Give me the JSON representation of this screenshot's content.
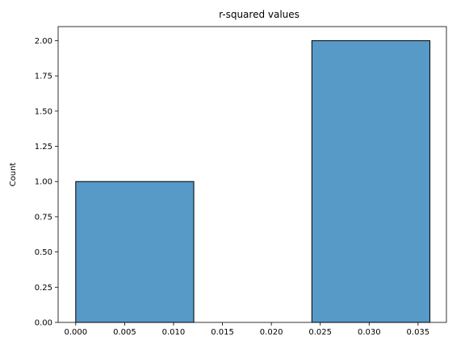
{
  "chart_data": {
    "type": "bar",
    "title": "r-squared values",
    "xlabel": "",
    "ylabel": "Count",
    "xlim": [
      -0.0018,
      0.0379
    ],
    "ylim": [
      0,
      2.1
    ],
    "grid": false,
    "bar_color": "#5799C7",
    "edge_color": "#000000",
    "bins": [
      {
        "x0": 0.0,
        "x1": 0.01207,
        "count": 1
      },
      {
        "x0": 0.01207,
        "x1": 0.02414,
        "count": 0
      },
      {
        "x0": 0.02414,
        "x1": 0.03621,
        "count": 2
      }
    ],
    "x_ticks": [
      {
        "value": 0.0,
        "label": "0.000"
      },
      {
        "value": 0.005,
        "label": "0.005"
      },
      {
        "value": 0.01,
        "label": "0.010"
      },
      {
        "value": 0.015,
        "label": "0.015"
      },
      {
        "value": 0.02,
        "label": "0.020"
      },
      {
        "value": 0.025,
        "label": "0.025"
      },
      {
        "value": 0.03,
        "label": "0.030"
      },
      {
        "value": 0.035,
        "label": "0.035"
      }
    ],
    "y_ticks": [
      {
        "value": 0.0,
        "label": "0.00"
      },
      {
        "value": 0.25,
        "label": "0.25"
      },
      {
        "value": 0.5,
        "label": "0.50"
      },
      {
        "value": 0.75,
        "label": "0.75"
      },
      {
        "value": 1.0,
        "label": "1.00"
      },
      {
        "value": 1.25,
        "label": "1.25"
      },
      {
        "value": 1.5,
        "label": "1.50"
      },
      {
        "value": 1.75,
        "label": "1.75"
      },
      {
        "value": 2.0,
        "label": "2.00"
      }
    ]
  }
}
